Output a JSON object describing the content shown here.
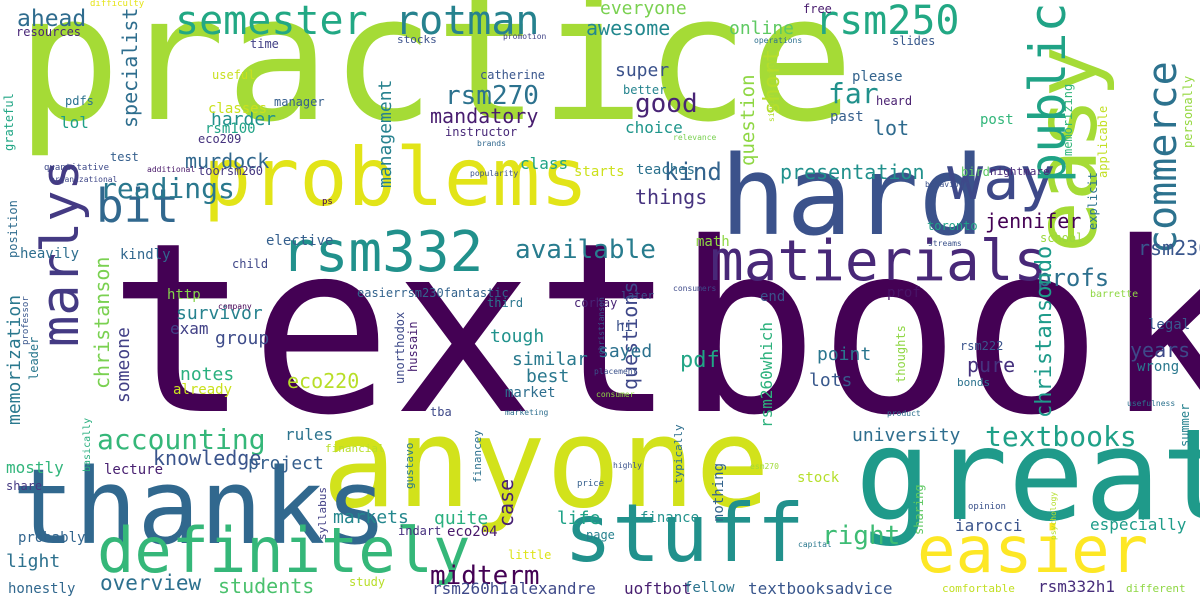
{
  "colors": {
    "background": "#ffffff"
  },
  "words": [
    {
      "text": "practice",
      "color": "#a5db36"
    },
    {
      "text": "textbook",
      "color": "#440154"
    },
    {
      "text": "anyone",
      "color": "#d2e21b"
    },
    {
      "text": "great",
      "color": "#1f9a8a"
    },
    {
      "text": "thanks",
      "color": "#31688e"
    },
    {
      "text": "hard",
      "color": "#3b528b"
    },
    {
      "text": "problems",
      "color": "#e2e418"
    },
    {
      "text": "easy",
      "color": "#a5db36"
    },
    {
      "text": "stuff",
      "color": "#21918c"
    },
    {
      "text": "definitely",
      "color": "#35b779"
    },
    {
      "text": "easier",
      "color": "#fde725"
    },
    {
      "text": "matierials",
      "color": "#482878"
    },
    {
      "text": "rsm332",
      "color": "#21918c"
    },
    {
      "text": "way",
      "color": "#3e4989"
    },
    {
      "text": "marlys",
      "color": "#443a83"
    },
    {
      "text": "bit",
      "color": "#31688e"
    },
    {
      "text": "public",
      "color": "#20a386"
    },
    {
      "text": "commerce",
      "color": "#2c728e"
    },
    {
      "text": "semester",
      "color": "#22a884"
    },
    {
      "text": "rotman",
      "color": "#26828e"
    },
    {
      "text": "rsm250",
      "color": "#22a884"
    },
    {
      "text": "accounting",
      "color": "#35b779"
    },
    {
      "text": "textbooks",
      "color": "#1fa188"
    },
    {
      "text": "readings",
      "color": "#2a788e"
    },
    {
      "text": "available",
      "color": "#287c8e"
    },
    {
      "text": "midterm",
      "color": "#440154"
    },
    {
      "text": "rsm270",
      "color": "#2c728e"
    },
    {
      "text": "good",
      "color": "#482475"
    },
    {
      "text": "far",
      "color": "#21918c"
    },
    {
      "text": "right",
      "color": "#3dbc74"
    },
    {
      "text": "profs",
      "color": "#2d708e"
    },
    {
      "text": "rsm230",
      "color": "#39568c"
    },
    {
      "text": "kind",
      "color": "#33638d"
    },
    {
      "text": "overview",
      "color": "#2d708e"
    },
    {
      "text": "students",
      "color": "#4ac16d"
    },
    {
      "text": "university",
      "color": "#2e6e8e"
    },
    {
      "text": "knowledge",
      "color": "#3a548c"
    },
    {
      "text": "ahead",
      "color": "#2f6c8e"
    },
    {
      "text": "awesome",
      "color": "#23888e"
    },
    {
      "text": "everyone",
      "color": "#7ad151"
    },
    {
      "text": "online",
      "color": "#5ec962"
    },
    {
      "text": "mandatory",
      "color": "#481d6f"
    },
    {
      "text": "super",
      "color": "#3b528b"
    },
    {
      "text": "lot",
      "color": "#2f6b8e"
    },
    {
      "text": "specialist",
      "color": "#2e6e8e"
    },
    {
      "text": "harder",
      "color": "#21918c"
    },
    {
      "text": "short",
      "color": "#b5de2b"
    },
    {
      "text": "question",
      "color": "#8fd744"
    },
    {
      "text": "presentation",
      "color": "#21918c"
    },
    {
      "text": "jennifer",
      "color": "#440154"
    },
    {
      "text": "christansondo",
      "color": "#1e9b8a"
    },
    {
      "text": "management",
      "color": "#26818e"
    },
    {
      "text": "memorization",
      "color": "#2a788e"
    },
    {
      "text": "christanson",
      "color": "#7ad151"
    },
    {
      "text": "murdock",
      "color": "#31688e"
    },
    {
      "text": "things",
      "color": "#46337f"
    },
    {
      "text": "survivor",
      "color": "#26828e"
    },
    {
      "text": "someone",
      "color": "#424086"
    },
    {
      "text": "group",
      "color": "#3e4c8a"
    },
    {
      "text": "notes",
      "color": "#2ab07f"
    },
    {
      "text": "exam",
      "color": "#424186"
    },
    {
      "text": "eco220",
      "color": "#b8de29"
    },
    {
      "text": "questions",
      "color": "#3f4889"
    },
    {
      "text": "pdf",
      "color": "#21a585"
    },
    {
      "text": "similar",
      "color": "#297a8e"
    },
    {
      "text": "best",
      "color": "#2a788e"
    },
    {
      "text": "sayed",
      "color": "#2c718e"
    },
    {
      "text": "tough",
      "color": "#20928c"
    },
    {
      "text": "years",
      "color": "#3e4989"
    },
    {
      "text": "pure",
      "color": "#46327e"
    },
    {
      "text": "lots",
      "color": "#38588c"
    },
    {
      "text": "point",
      "color": "#2a768e"
    },
    {
      "text": "rsm260which",
      "color": "#2db27d"
    },
    {
      "text": "project",
      "color": "#355f8d"
    },
    {
      "text": "rules",
      "color": "#2c738e"
    },
    {
      "text": "markets",
      "color": "#24878e"
    },
    {
      "text": "quite",
      "color": "#2ab07f"
    },
    {
      "text": "case",
      "color": "#482173"
    },
    {
      "text": "life",
      "color": "#1fa287"
    },
    {
      "text": "light",
      "color": "#2d718e"
    },
    {
      "text": "textbooksadvice",
      "color": "#39568c"
    },
    {
      "text": "uoftbot",
      "color": "#481f70"
    },
    {
      "text": "rsm260h1alexandre",
      "color": "#3e4989"
    },
    {
      "text": "rsm332h1",
      "color": "#472d7b"
    },
    {
      "text": "iarocci",
      "color": "#3a548c"
    },
    {
      "text": "especially",
      "color": "#1e9c89"
    },
    {
      "text": "finance",
      "color": "#21918c"
    },
    {
      "text": "fellow",
      "color": "#2b748e"
    },
    {
      "text": "eco204",
      "color": "#48186a"
    },
    {
      "text": "indart",
      "color": "#46307e"
    },
    {
      "text": "honestly",
      "color": "#31688e"
    },
    {
      "text": "probably",
      "color": "#32658e"
    },
    {
      "text": "mostly",
      "color": "#31b57b"
    },
    {
      "text": "lecture",
      "color": "#482071"
    },
    {
      "text": "share",
      "color": "#453882"
    },
    {
      "text": "classes",
      "color": "#cae11f"
    },
    {
      "text": "rsm100",
      "color": "#20a386"
    },
    {
      "text": "lol",
      "color": "#1fa088"
    },
    {
      "text": "pdfs",
      "color": "#2c728e"
    },
    {
      "text": "manager",
      "color": "#355e8d"
    },
    {
      "text": "useful",
      "color": "#c8e020"
    },
    {
      "text": "time",
      "color": "#424086"
    },
    {
      "text": "resources",
      "color": "#482677"
    },
    {
      "text": "stocks",
      "color": "#3b528b"
    },
    {
      "text": "promotion",
      "color": "#414487"
    },
    {
      "text": "difficulty",
      "color": "#e5e419"
    },
    {
      "text": "catherine",
      "color": "#39568c"
    },
    {
      "text": "better",
      "color": "#25848e"
    },
    {
      "text": "instructor",
      "color": "#482878"
    },
    {
      "text": "choice",
      "color": "#1f968b"
    },
    {
      "text": "free",
      "color": "#481b6d"
    },
    {
      "text": "slides",
      "color": "#38598c"
    },
    {
      "text": "operations",
      "color": "#2d708e"
    },
    {
      "text": "please",
      "color": "#33638d"
    },
    {
      "text": "heard",
      "color": "#481f70"
    },
    {
      "text": "past",
      "color": "#355f8d"
    },
    {
      "text": "post",
      "color": "#32b67a"
    },
    {
      "text": "memorizing",
      "color": "#31b57b"
    },
    {
      "text": "personally",
      "color": "#95d840"
    },
    {
      "text": "explicit",
      "color": "#2c738e"
    },
    {
      "text": "applicable",
      "color": "#c2df23"
    },
    {
      "text": "significantly",
      "color": "#b0dd2f"
    },
    {
      "text": "eco209",
      "color": "#46337e"
    },
    {
      "text": "test",
      "color": "#355f8d"
    },
    {
      "text": "quantitative",
      "color": "#3e4a89"
    },
    {
      "text": "additional",
      "color": "#481769"
    },
    {
      "text": "organizational",
      "color": "#3f4788"
    },
    {
      "text": "brands",
      "color": "#31688e"
    },
    {
      "text": "relevance",
      "color": "#7ad151"
    },
    {
      "text": "popularity",
      "color": "#3b528b"
    },
    {
      "text": "toorsm260",
      "color": "#453781"
    },
    {
      "text": "class",
      "color": "#20a386"
    },
    {
      "text": "starts",
      "color": "#cde11d"
    },
    {
      "text": "teaches",
      "color": "#2c728e"
    },
    {
      "text": "behaviour",
      "color": "#3b518b"
    },
    {
      "text": "bird",
      "color": "#5cc863"
    },
    {
      "text": "nightmare",
      "color": "#482878"
    },
    {
      "text": "ps",
      "color": "#440154"
    },
    {
      "text": "position",
      "color": "#2f6c8e"
    },
    {
      "text": "grateful",
      "color": "#21a685"
    },
    {
      "text": "heavily",
      "color": "#2e6e8e"
    },
    {
      "text": "elective",
      "color": "#355f8d"
    },
    {
      "text": "kindly",
      "color": "#31678e"
    },
    {
      "text": "child",
      "color": "#3f4788"
    },
    {
      "text": "toronto",
      "color": "#1fa287"
    },
    {
      "text": "school",
      "color": "#9bd93c"
    },
    {
      "text": "math",
      "color": "#8fd744"
    },
    {
      "text": "http",
      "color": "#84d44b"
    },
    {
      "text": "streams",
      "color": "#3b528b"
    },
    {
      "text": "professor",
      "color": "#39568c"
    },
    {
      "text": "leader",
      "color": "#2a788e"
    },
    {
      "text": "easierrsm230fantastic",
      "color": "#33638d"
    },
    {
      "text": "third",
      "color": "#2a768e"
    },
    {
      "text": "later",
      "color": "#3b528b"
    },
    {
      "text": "corhay",
      "color": "#482374"
    },
    {
      "text": "christianson",
      "color": "#38598c"
    },
    {
      "text": "consumers",
      "color": "#3e4989"
    },
    {
      "text": "company",
      "color": "#440154"
    },
    {
      "text": "prof",
      "color": "#481467"
    },
    {
      "text": "end",
      "color": "#3b528b"
    },
    {
      "text": "barrette",
      "color": "#8fd744"
    },
    {
      "text": "unorthodox",
      "color": "#3e4a89"
    },
    {
      "text": "hussain",
      "color": "#482071"
    },
    {
      "text": "hi",
      "color": "#3b528b"
    },
    {
      "text": "already",
      "color": "#cae11f"
    },
    {
      "text": "thoughts",
      "color": "#8fd744"
    },
    {
      "text": "rsm222",
      "color": "#3a548c"
    },
    {
      "text": "legal",
      "color": "#39568c"
    },
    {
      "text": "wrong",
      "color": "#2a788e"
    },
    {
      "text": "bonds",
      "color": "#2c728e"
    },
    {
      "text": "summer",
      "color": "#26828e"
    },
    {
      "text": "usefulness",
      "color": "#2c728e"
    },
    {
      "text": "product",
      "color": "#2d708e"
    },
    {
      "text": "placement",
      "color": "#3b528b"
    },
    {
      "text": "consumer",
      "color": "#8fd744"
    },
    {
      "text": "market",
      "color": "#2e6e8e"
    },
    {
      "text": "tba",
      "color": "#3e4989"
    },
    {
      "text": "marketing",
      "color": "#2e6e8e"
    },
    {
      "text": "basically",
      "color": "#29af7f"
    },
    {
      "text": "financial",
      "color": "#b8de29"
    },
    {
      "text": "gustavo",
      "color": "#2a788e"
    },
    {
      "text": "financey",
      "color": "#2d718e"
    },
    {
      "text": "typically",
      "color": "#2e6e8e"
    },
    {
      "text": "nothing",
      "color": "#33638d"
    },
    {
      "text": "highly",
      "color": "#3b528b"
    },
    {
      "text": "price",
      "color": "#355f8d"
    },
    {
      "text": "syllabus",
      "color": "#424086"
    },
    {
      "text": "esm270",
      "color": "#a0da39"
    },
    {
      "text": "stock",
      "color": "#b5de2b"
    },
    {
      "text": "psychology",
      "color": "#b5de2b"
    },
    {
      "text": "sharing",
      "color": "#5ec962"
    },
    {
      "text": "opinion",
      "color": "#3b528b"
    },
    {
      "text": "page",
      "color": "#26818e"
    },
    {
      "text": "little",
      "color": "#dde318"
    },
    {
      "text": "capital",
      "color": "#2a788e"
    },
    {
      "text": "study",
      "color": "#b8de29"
    },
    {
      "text": "comfortable",
      "color": "#c2df23"
    },
    {
      "text": "different",
      "color": "#8fd744"
    }
  ]
}
